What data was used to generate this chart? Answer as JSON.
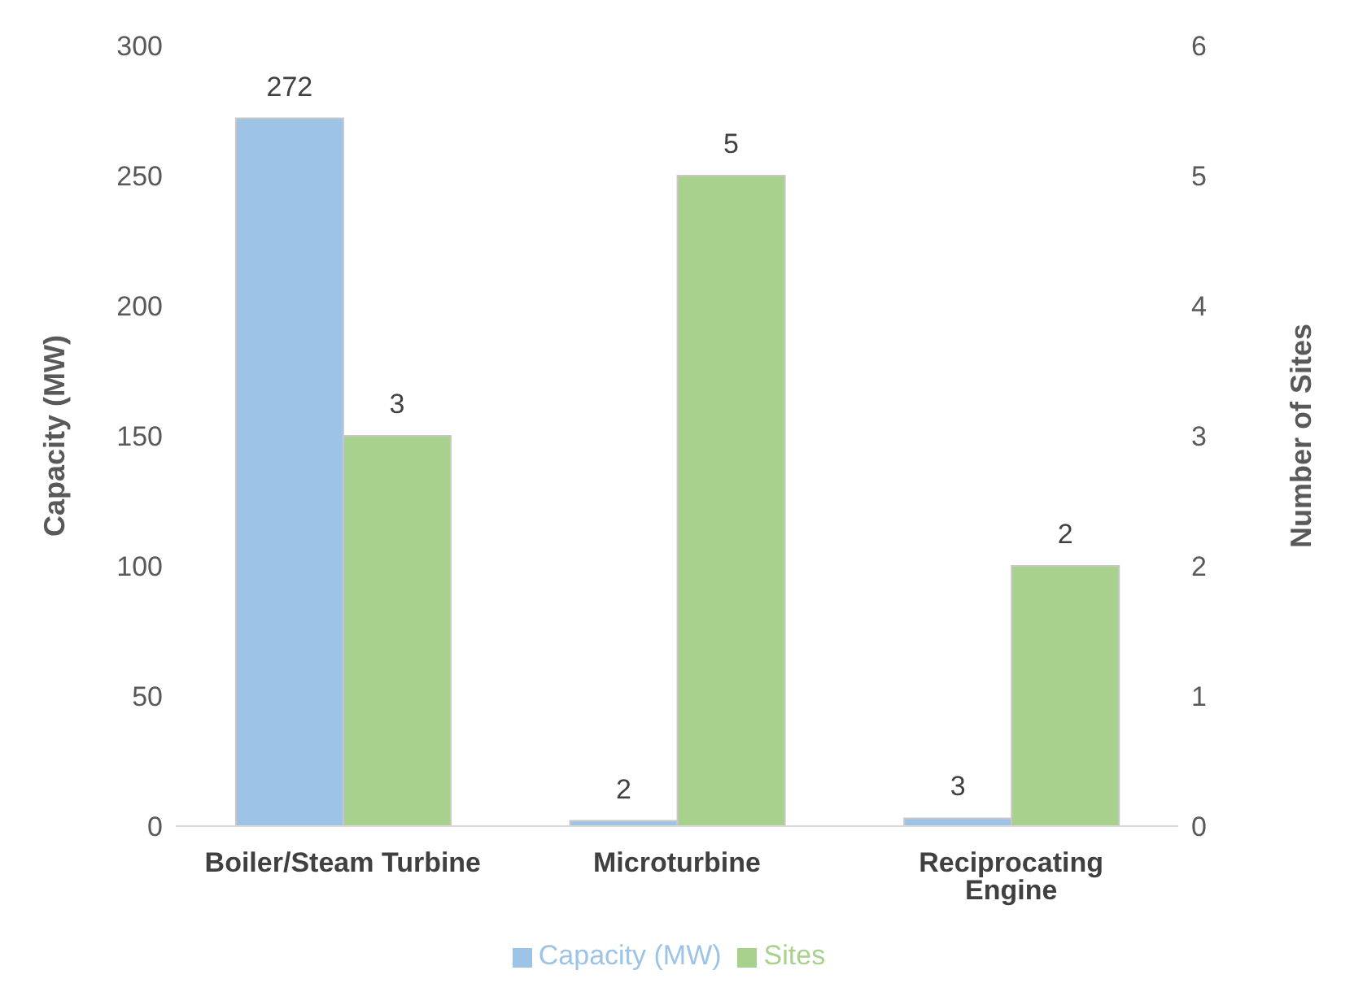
{
  "chart_data": {
    "type": "bar",
    "categories": [
      "Boiler/Steam Turbine",
      "Microturbine",
      "Reciprocating Engine"
    ],
    "series": [
      {
        "name": "Capacity (MW)",
        "color": "#9dc3e6",
        "values": [
          272,
          2,
          3
        ]
      },
      {
        "name": "Sites",
        "color": "#a9d18e",
        "values": [
          3,
          5,
          2
        ],
        "axis": "y2"
      }
    ],
    "ylabel": "Capacity (MW)",
    "y2label": "Number of Sites",
    "ylim": [
      0,
      300
    ],
    "yticks": [
      0,
      50,
      100,
      150,
      200,
      250,
      300
    ],
    "y2lim": [
      0,
      6
    ],
    "y2ticks": [
      0,
      1,
      2,
      3,
      4,
      5,
      6
    ],
    "data_labels": true,
    "legend": "bottom"
  }
}
